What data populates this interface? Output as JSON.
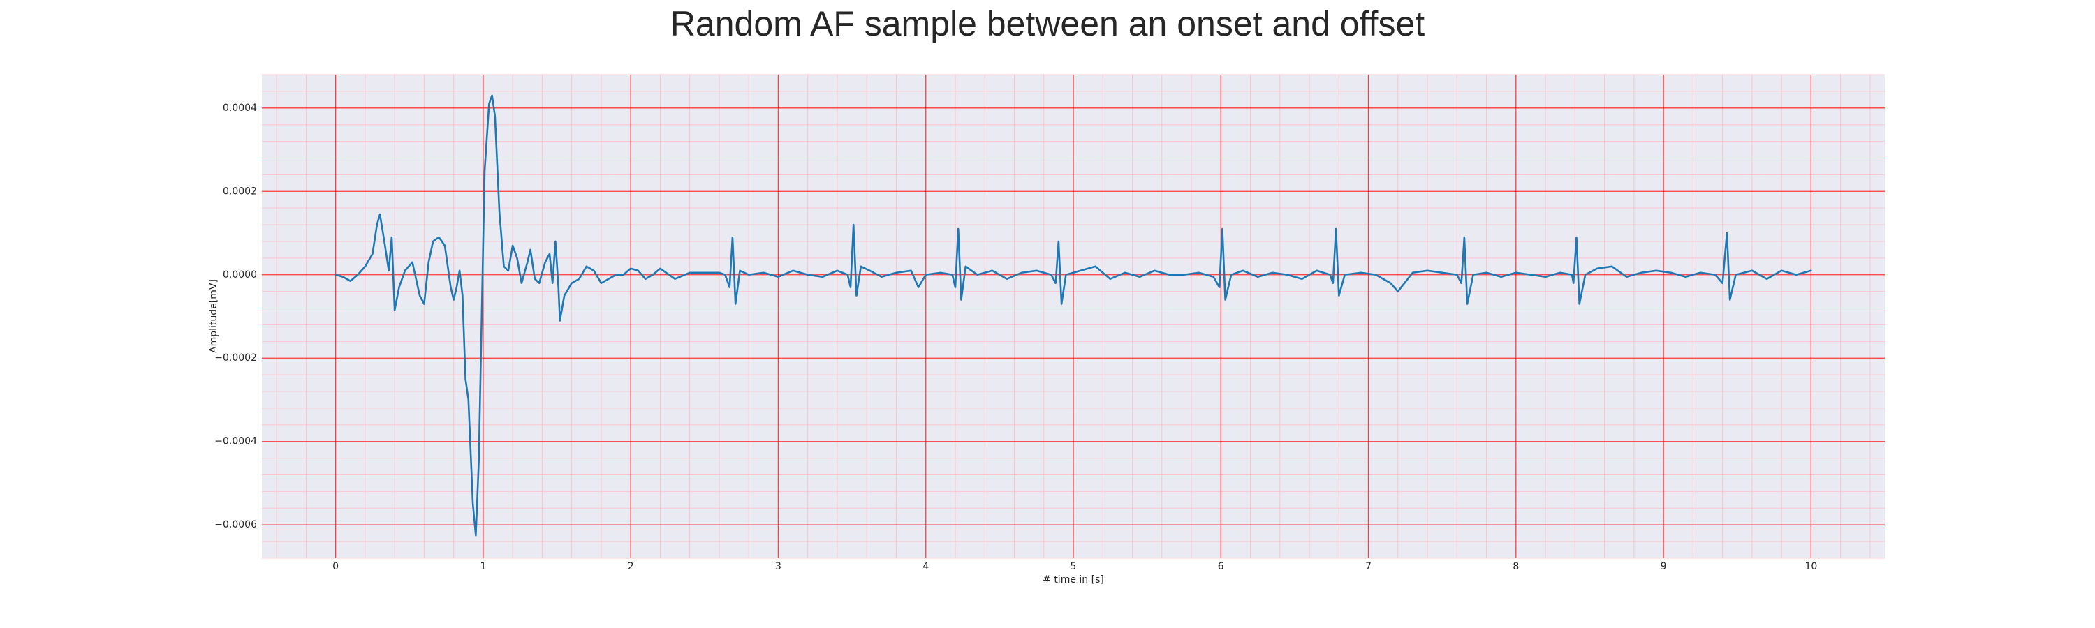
{
  "chart_data": {
    "type": "line",
    "title": "Random AF sample between an onset and offset",
    "x_label": "# time in [s]",
    "y_label": "Amplitude[mV]",
    "color": "#1f77b4",
    "grid": true,
    "minor_grid": true,
    "xlim": [
      -0.5,
      10.5
    ],
    "ylim": [
      -0.00068,
      0.00048
    ],
    "xticks": [
      0,
      1,
      2,
      3,
      4,
      5,
      6,
      7,
      8,
      9,
      10
    ],
    "yticks": [
      {
        "value": -0.0006,
        "label": "−0.0006"
      },
      {
        "value": -0.0004,
        "label": "−0.0004"
      },
      {
        "value": -0.0002,
        "label": "−0.0002"
      },
      {
        "value": 0,
        "label": "0.0000"
      },
      {
        "value": 0.0002,
        "label": "0.0002"
      },
      {
        "value": 0.0004,
        "label": "0.0004"
      }
    ],
    "x": [
      0,
      0.05,
      0.1,
      0.15,
      0.2,
      0.25,
      0.28,
      0.3,
      0.33,
      0.36,
      0.38,
      0.4,
      0.43,
      0.47,
      0.52,
      0.57,
      0.6,
      0.63,
      0.66,
      0.7,
      0.74,
      0.78,
      0.8,
      0.82,
      0.84,
      0.86,
      0.88,
      0.9,
      0.93,
      0.95,
      0.97,
      0.99,
      1.01,
      1.04,
      1.06,
      1.08,
      1.11,
      1.14,
      1.17,
      1.2,
      1.23,
      1.26,
      1.3,
      1.32,
      1.35,
      1.38,
      1.42,
      1.45,
      1.47,
      1.49,
      1.51,
      1.52,
      1.55,
      1.6,
      1.65,
      1.7,
      1.75,
      1.8,
      1.85,
      1.9,
      1.95,
      2,
      2.05,
      2.1,
      2.15,
      2.2,
      2.3,
      2.4,
      2.5,
      2.6,
      2.64,
      2.67,
      2.69,
      2.71,
      2.74,
      2.8,
      2.9,
      3.0,
      3.1,
      3.2,
      3.3,
      3.4,
      3.47,
      3.49,
      3.51,
      3.53,
      3.56,
      3.62,
      3.7,
      3.8,
      3.9,
      3.95,
      4.0,
      4.1,
      4.18,
      4.2,
      4.22,
      4.24,
      4.27,
      4.35,
      4.45,
      4.55,
      4.65,
      4.75,
      4.85,
      4.88,
      4.9,
      4.92,
      4.95,
      5.05,
      5.15,
      5.25,
      5.35,
      5.45,
      5.55,
      5.65,
      5.75,
      5.85,
      5.95,
      5.99,
      6.01,
      6.03,
      6.07,
      6.15,
      6.25,
      6.35,
      6.45,
      6.55,
      6.65,
      6.74,
      6.76,
      6.78,
      6.8,
      6.84,
      6.95,
      7.05,
      7.15,
      7.2,
      7.3,
      7.4,
      7.5,
      7.6,
      7.63,
      7.65,
      7.67,
      7.71,
      7.8,
      7.9,
      8.0,
      8.1,
      8.2,
      8.3,
      8.38,
      8.39,
      8.41,
      8.43,
      8.47,
      8.55,
      8.65,
      8.75,
      8.85,
      8.95,
      9.05,
      9.15,
      9.25,
      9.35,
      9.4,
      9.43,
      9.45,
      9.49,
      9.6,
      9.7,
      9.8,
      9.9,
      10
    ],
    "values": [
      0,
      -5e-06,
      -1.5e-05,
      0,
      2e-05,
      5e-05,
      0.00012,
      0.000145,
      8e-05,
      1e-05,
      9e-05,
      -8.5e-05,
      -3e-05,
      1e-05,
      3e-05,
      -5e-05,
      -7e-05,
      3e-05,
      8e-05,
      9e-05,
      7e-05,
      -3e-05,
      -6e-05,
      -3e-05,
      1e-05,
      -5e-05,
      -0.00025,
      -0.0003,
      -0.00055,
      -0.000625,
      -0.00045,
      -0.0001,
      0.00025,
      0.00041,
      0.00043,
      0.00038,
      0.00015,
      2e-05,
      1e-05,
      7e-05,
      4e-05,
      -2e-05,
      3e-05,
      6e-05,
      -1e-05,
      -2e-05,
      3e-05,
      5e-05,
      -2e-05,
      8e-05,
      -3e-05,
      -0.00011,
      -5e-05,
      -2e-05,
      -1e-05,
      2e-05,
      1e-05,
      -2e-05,
      -1e-05,
      0,
      0,
      1.5e-05,
      1e-05,
      -1e-05,
      0,
      1.5e-05,
      -1e-05,
      5e-06,
      5e-06,
      5e-06,
      0,
      -3e-05,
      9e-05,
      -7e-05,
      1e-05,
      0,
      5e-06,
      -5e-06,
      1e-05,
      0,
      -5e-06,
      1e-05,
      0,
      -3e-05,
      0.00012,
      -5e-05,
      2e-05,
      1e-05,
      -5e-06,
      5e-06,
      1e-05,
      -3e-05,
      0,
      5e-06,
      0,
      -3e-05,
      0.00011,
      -6e-05,
      2e-05,
      0,
      1e-05,
      -1e-05,
      5e-06,
      1e-05,
      0,
      -2e-05,
      8e-05,
      -7e-05,
      0,
      1e-05,
      2e-05,
      -1e-05,
      5e-06,
      -5e-06,
      1e-05,
      0,
      0,
      5e-06,
      -5e-06,
      -3e-05,
      0.00011,
      -6e-05,
      0,
      1e-05,
      -5e-06,
      5e-06,
      0,
      -1e-05,
      1e-05,
      0,
      -2e-05,
      0.00011,
      -5e-05,
      0,
      5e-06,
      0,
      -2e-05,
      -4e-05,
      5e-06,
      1e-05,
      5e-06,
      0,
      -2e-05,
      9e-05,
      -7e-05,
      0,
      5e-06,
      -5e-06,
      5e-06,
      0,
      -5e-06,
      5e-06,
      0,
      -2e-05,
      9e-05,
      -7e-05,
      0,
      1.5e-05,
      2e-05,
      -5e-06,
      5e-06,
      1e-05,
      5e-06,
      -5e-06,
      5e-06,
      0,
      -2e-05,
      0.0001,
      -6e-05,
      0,
      1e-05,
      -1e-05,
      1e-05,
      0,
      1e-05
    ]
  }
}
